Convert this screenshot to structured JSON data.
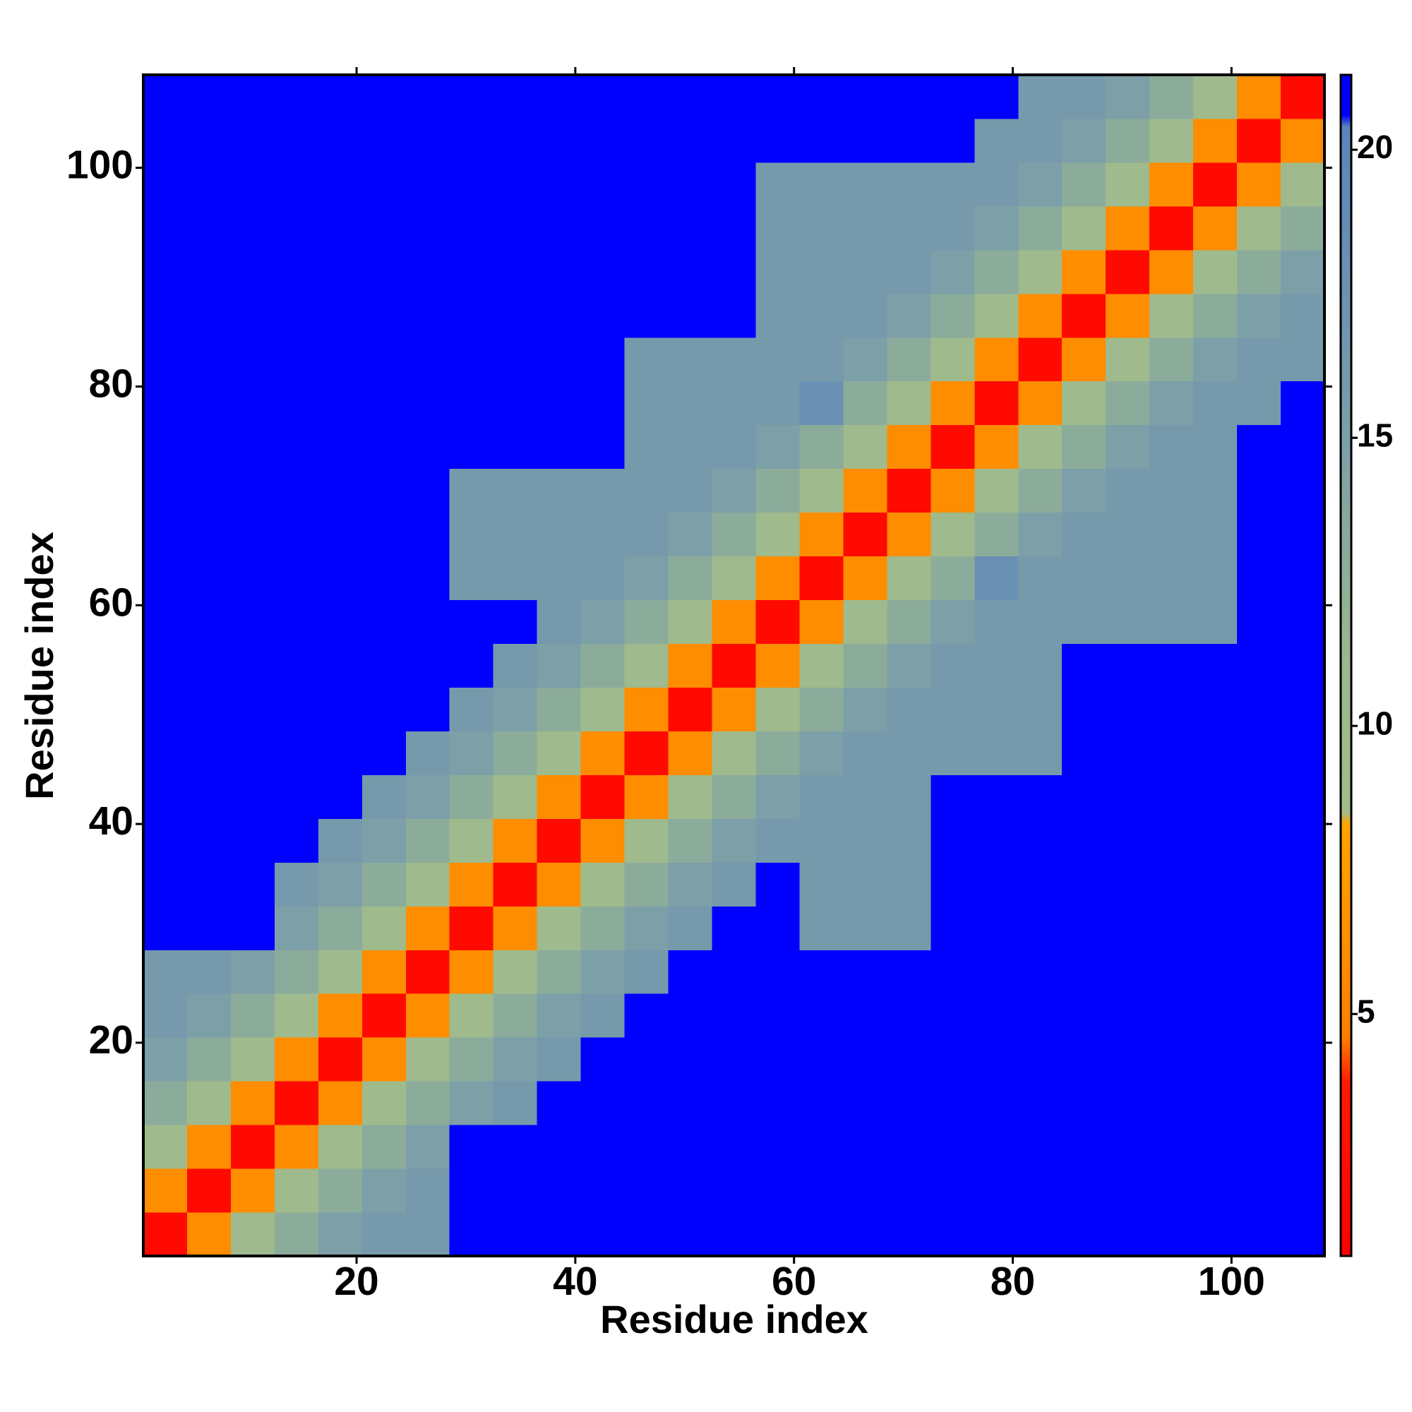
{
  "chart_data": {
    "type": "heatmap",
    "x_label": "Residue index",
    "y_label": "Residue index",
    "x": [
      0.5,
      4.5,
      8.5,
      12.5,
      16.5,
      20.5,
      24.5,
      28.5,
      32.5,
      36.5,
      40.5,
      44.5,
      48.5,
      52.5,
      56.5,
      60.5,
      64.5,
      68.5,
      72.5,
      76.5,
      80.5,
      84.5,
      88.5,
      92.5,
      96.5,
      100.5,
      104.5,
      108.5
    ],
    "y": [
      0.5,
      4.5,
      8.5,
      12.5,
      16.5,
      20.5,
      24.5,
      28.5,
      32.5,
      36.5,
      40.5,
      44.5,
      48.5,
      52.5,
      56.5,
      60.5,
      64.5,
      68.5,
      72.5,
      76.5,
      80.5,
      84.5,
      88.5,
      92.5,
      96.5,
      100.5,
      104.5,
      108.5
    ],
    "values": [
      [
        2,
        6,
        10,
        13,
        15,
        16,
        16,
        21,
        21,
        21,
        21,
        21,
        21,
        21,
        21,
        21,
        21,
        21,
        21,
        21,
        21,
        21,
        21,
        21,
        21,
        21,
        21
      ],
      [
        6,
        2,
        6,
        10,
        13,
        15,
        16,
        21,
        21,
        21,
        21,
        21,
        21,
        21,
        21,
        21,
        21,
        21,
        21,
        21,
        21,
        21,
        21,
        21,
        21,
        21,
        21
      ],
      [
        10,
        6,
        2,
        6,
        10,
        13,
        15,
        21,
        21,
        21,
        21,
        21,
        21,
        21,
        21,
        21,
        21,
        21,
        21,
        21,
        21,
        21,
        21,
        21,
        21,
        21,
        21
      ],
      [
        13,
        10,
        6,
        2,
        6,
        10,
        13,
        15,
        16,
        21,
        21,
        21,
        21,
        21,
        21,
        21,
        21,
        21,
        21,
        21,
        21,
        21,
        21,
        21,
        21,
        21,
        21
      ],
      [
        15,
        13,
        10,
        6,
        2,
        6,
        10,
        13,
        15,
        16,
        21,
        21,
        21,
        21,
        21,
        21,
        21,
        21,
        21,
        21,
        21,
        21,
        21,
        21,
        21,
        21,
        21
      ],
      [
        16,
        15,
        13,
        10,
        6,
        2,
        6,
        10,
        13,
        15,
        16,
        21,
        21,
        21,
        21,
        21,
        21,
        21,
        21,
        21,
        21,
        21,
        21,
        21,
        21,
        21,
        21
      ],
      [
        16,
        16,
        15,
        13,
        10,
        6,
        2,
        6,
        10,
        13,
        15,
        16,
        21,
        21,
        21,
        21,
        21,
        21,
        21,
        21,
        21,
        21,
        21,
        21,
        21,
        21,
        21
      ],
      [
        21,
        21,
        21,
        15,
        13,
        10,
        6,
        2,
        6,
        10,
        13,
        15,
        16,
        21,
        21,
        16,
        16,
        16,
        21,
        21,
        21,
        21,
        21,
        21,
        21,
        21,
        21
      ],
      [
        21,
        21,
        21,
        16,
        15,
        13,
        10,
        6,
        2,
        6,
        10,
        13,
        15,
        16,
        21,
        16,
        16,
        16,
        21,
        21,
        21,
        21,
        21,
        21,
        21,
        21,
        21
      ],
      [
        21,
        21,
        21,
        21,
        16,
        15,
        13,
        10,
        6,
        2,
        6,
        10,
        13,
        15,
        16,
        16,
        16,
        16,
        21,
        21,
        21,
        21,
        21,
        21,
        21,
        21,
        21
      ],
      [
        21,
        21,
        21,
        21,
        21,
        16,
        15,
        13,
        10,
        6,
        2,
        6,
        10,
        13,
        15,
        16,
        16,
        16,
        21,
        21,
        21,
        21,
        21,
        21,
        21,
        21,
        21
      ],
      [
        21,
        21,
        21,
        21,
        21,
        21,
        16,
        15,
        13,
        10,
        6,
        2,
        6,
        10,
        13,
        15,
        16,
        16,
        16,
        16,
        16,
        21,
        21,
        21,
        21,
        21,
        21
      ],
      [
        21,
        21,
        21,
        21,
        21,
        21,
        21,
        16,
        15,
        13,
        10,
        6,
        2,
        6,
        10,
        13,
        15,
        16,
        16,
        16,
        16,
        21,
        21,
        21,
        21,
        21,
        21
      ],
      [
        21,
        21,
        21,
        21,
        21,
        21,
        21,
        21,
        16,
        15,
        13,
        10,
        6,
        2,
        6,
        10,
        13,
        15,
        16,
        16,
        16,
        21,
        21,
        21,
        21,
        21,
        21
      ],
      [
        21,
        21,
        21,
        21,
        21,
        21,
        21,
        21,
        21,
        16,
        15,
        13,
        10,
        6,
        2,
        6,
        10,
        13,
        15,
        16,
        16,
        16,
        16,
        16,
        16,
        21,
        21
      ],
      [
        21,
        21,
        21,
        21,
        21,
        21,
        21,
        16,
        16,
        16,
        16,
        15,
        13,
        10,
        6,
        2,
        6,
        10,
        13,
        18,
        16,
        16,
        16,
        16,
        16,
        21,
        21
      ],
      [
        21,
        21,
        21,
        21,
        21,
        21,
        21,
        16,
        16,
        16,
        16,
        16,
        15,
        13,
        10,
        6,
        2,
        6,
        10,
        13,
        15,
        16,
        16,
        16,
        16,
        21,
        21
      ],
      [
        21,
        21,
        21,
        21,
        21,
        21,
        21,
        16,
        16,
        16,
        16,
        16,
        16,
        15,
        13,
        10,
        6,
        2,
        6,
        10,
        13,
        15,
        16,
        16,
        16,
        21,
        21
      ],
      [
        21,
        21,
        21,
        21,
        21,
        21,
        21,
        21,
        21,
        21,
        21,
        16,
        16,
        16,
        15,
        13,
        10,
        6,
        2,
        6,
        10,
        13,
        15,
        16,
        16,
        21,
        21
      ],
      [
        21,
        21,
        21,
        21,
        21,
        21,
        21,
        21,
        21,
        21,
        21,
        16,
        16,
        16,
        16,
        18,
        13,
        10,
        6,
        2,
        6,
        10,
        13,
        15,
        16,
        16,
        21
      ],
      [
        21,
        21,
        21,
        21,
        21,
        21,
        21,
        21,
        21,
        21,
        21,
        16,
        16,
        16,
        16,
        16,
        15,
        13,
        10,
        6,
        2,
        6,
        10,
        13,
        15,
        16,
        16
      ],
      [
        21,
        21,
        21,
        21,
        21,
        21,
        21,
        21,
        21,
        21,
        21,
        21,
        21,
        21,
        16,
        16,
        16,
        15,
        13,
        10,
        6,
        2,
        6,
        10,
        13,
        15,
        16
      ],
      [
        21,
        21,
        21,
        21,
        21,
        21,
        21,
        21,
        21,
        21,
        21,
        21,
        21,
        21,
        16,
        16,
        16,
        16,
        15,
        13,
        10,
        6,
        2,
        6,
        10,
        13,
        15
      ],
      [
        21,
        21,
        21,
        21,
        21,
        21,
        21,
        21,
        21,
        21,
        21,
        21,
        21,
        21,
        16,
        16,
        16,
        16,
        16,
        15,
        13,
        10,
        6,
        2,
        6,
        10,
        13
      ],
      [
        21,
        21,
        21,
        21,
        21,
        21,
        21,
        21,
        21,
        21,
        21,
        21,
        21,
        21,
        16,
        16,
        16,
        16,
        16,
        16,
        15,
        13,
        10,
        6,
        2,
        6,
        10
      ],
      [
        21,
        21,
        21,
        21,
        21,
        21,
        21,
        21,
        21,
        21,
        21,
        21,
        21,
        21,
        21,
        21,
        21,
        21,
        21,
        16,
        16,
        15,
        13,
        10,
        6,
        2,
        6
      ],
      [
        21,
        21,
        21,
        21,
        21,
        21,
        21,
        21,
        21,
        21,
        21,
        21,
        21,
        21,
        21,
        21,
        21,
        21,
        21,
        21,
        16,
        16,
        15,
        13,
        10,
        6,
        2
      ]
    ],
    "xlim": [
      0.5,
      108.5
    ],
    "ylim": [
      0.5,
      108.5
    ],
    "xticks": [
      20,
      40,
      60,
      80,
      100
    ],
    "yticks": [
      20,
      40,
      60,
      80,
      100
    ],
    "colorbar": {
      "lim": [
        0.8,
        21.3
      ],
      "ticks": [
        5,
        10,
        15,
        20
      ],
      "stops": [
        [
          0.8,
          "#ff0000"
        ],
        [
          3.8,
          "#ff1a00"
        ],
        [
          4.6,
          "#ff7f00"
        ],
        [
          8.3,
          "#ffa500"
        ],
        [
          8.5,
          "#a3bc8a"
        ],
        [
          11,
          "#9cb88e"
        ],
        [
          15,
          "#7c9fa8"
        ],
        [
          20.4,
          "#5b84bc"
        ],
        [
          20.6,
          "#0000ff"
        ],
        [
          21.3,
          "#0000ff"
        ]
      ]
    }
  }
}
